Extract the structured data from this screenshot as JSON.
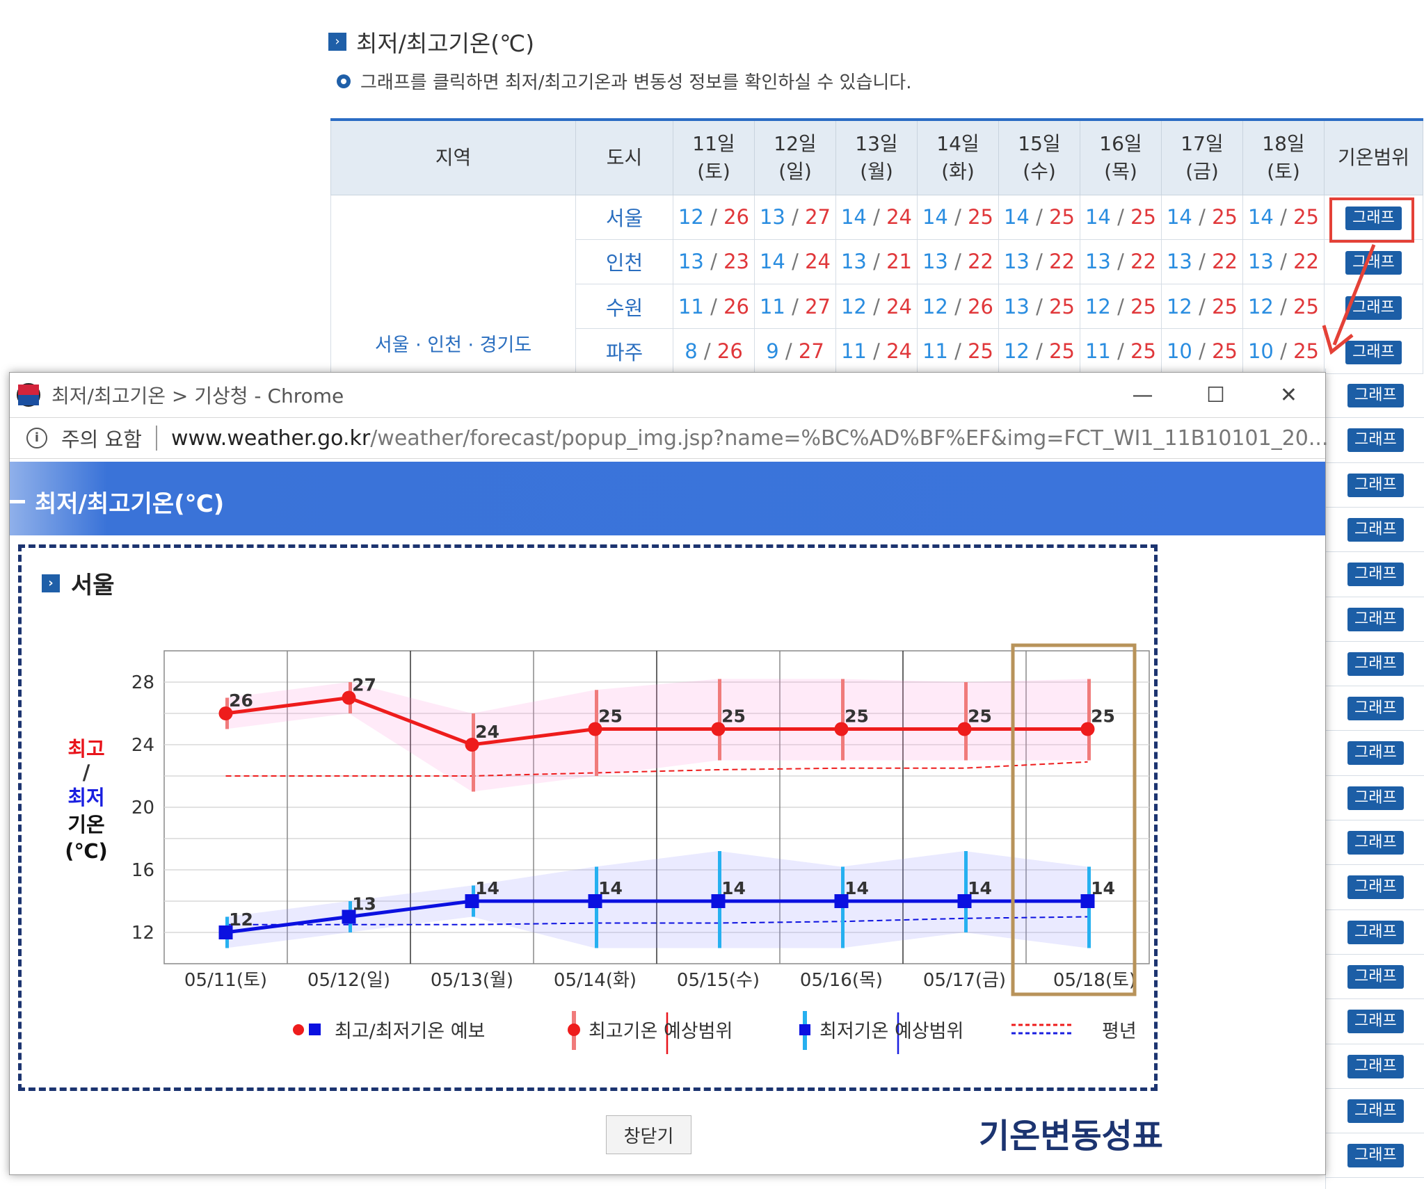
{
  "section": {
    "title": "최저/최고기온(℃)",
    "note": "그래프를 클릭하면 최저/최고기온과 변동성 정보를 확인하실 수 있습니다."
  },
  "table": {
    "headers": {
      "region": "지역",
      "city": "도시",
      "days": [
        {
          "day": "11일",
          "dow": "(토)"
        },
        {
          "day": "12일",
          "dow": "(일)"
        },
        {
          "day": "13일",
          "dow": "(월)"
        },
        {
          "day": "14일",
          "dow": "(화)"
        },
        {
          "day": "15일",
          "dow": "(수)"
        },
        {
          "day": "16일",
          "dow": "(목)"
        },
        {
          "day": "17일",
          "dow": "(금)"
        },
        {
          "day": "18일",
          "dow": "(토)"
        }
      ],
      "range": "기온범위"
    },
    "region_name": "서울 · 인천 · 경기도",
    "rows": [
      {
        "city": "서울",
        "temps": [
          [
            "12",
            "26"
          ],
          [
            "13",
            "27"
          ],
          [
            "14",
            "24"
          ],
          [
            "14",
            "25"
          ],
          [
            "14",
            "25"
          ],
          [
            "14",
            "25"
          ],
          [
            "14",
            "25"
          ],
          [
            "14",
            "25"
          ]
        ]
      },
      {
        "city": "인천",
        "temps": [
          [
            "13",
            "23"
          ],
          [
            "14",
            "24"
          ],
          [
            "13",
            "21"
          ],
          [
            "13",
            "22"
          ],
          [
            "13",
            "22"
          ],
          [
            "13",
            "22"
          ],
          [
            "13",
            "22"
          ],
          [
            "13",
            "22"
          ]
        ]
      },
      {
        "city": "수원",
        "temps": [
          [
            "11",
            "26"
          ],
          [
            "11",
            "27"
          ],
          [
            "12",
            "24"
          ],
          [
            "12",
            "26"
          ],
          [
            "13",
            "25"
          ],
          [
            "12",
            "25"
          ],
          [
            "12",
            "25"
          ],
          [
            "12",
            "25"
          ]
        ]
      },
      {
        "city": "파주",
        "temps": [
          [
            "8",
            "26"
          ],
          [
            "9",
            "27"
          ],
          [
            "11",
            "24"
          ],
          [
            "11",
            "25"
          ],
          [
            "12",
            "25"
          ],
          [
            "11",
            "25"
          ],
          [
            "10",
            "25"
          ],
          [
            "10",
            "25"
          ]
        ]
      }
    ],
    "graph_button": "그래프"
  },
  "popup": {
    "window_title": "최저/최고기온 > 기상청 - Chrome",
    "security_label": "주의 요함",
    "url_host": "www.weather.go.kr",
    "url_path": "/weather/forecast/popup_img.jsp?name=%BC%AD%BF%EF&img=FCT_WI1_11B10101_20...",
    "header_title": "최저/최고기온(℃)",
    "chart_title": "서울",
    "close_button": "창닫기",
    "annotation": "기온변동성표"
  },
  "chart_data": {
    "type": "line",
    "ylabel_parts": [
      "최고",
      "/",
      "최저",
      "기온",
      "(℃)"
    ],
    "categories": [
      "05/11(토)",
      "05/12(일)",
      "05/13(월)",
      "05/14(화)",
      "05/15(수)",
      "05/16(목)",
      "05/17(금)",
      "05/18(토)"
    ],
    "yticks": [
      12,
      16,
      20,
      24,
      28
    ],
    "ylim": [
      10,
      30
    ],
    "series": [
      {
        "name": "최고기온",
        "color": "#ee1c1c",
        "values": [
          26,
          27,
          24,
          25,
          25,
          25,
          25,
          25
        ],
        "range_low": [
          25,
          26,
          21,
          22,
          23,
          23,
          23,
          23
        ],
        "range_high": [
          27,
          28,
          26,
          27.5,
          28.2,
          28.2,
          28,
          28.2
        ],
        "normal": [
          22,
          22,
          22,
          22.2,
          22.4,
          22.5,
          22.5,
          22.9
        ]
      },
      {
        "name": "최저기온",
        "color": "#0b10e0",
        "values": [
          12,
          13,
          14,
          14,
          14,
          14,
          14,
          14
        ],
        "range_low": [
          11,
          12,
          13,
          11,
          11,
          11,
          12,
          11
        ],
        "range_high": [
          13,
          14,
          15,
          16.2,
          17.2,
          16.2,
          17.2,
          16.2
        ],
        "normal": [
          12.5,
          12.5,
          12.5,
          12.6,
          12.6,
          12.7,
          12.9,
          13
        ]
      }
    ],
    "legend": [
      "최고/최저기온 예보",
      "최고기온 예상범위",
      "최저기온 예상범위",
      "평년"
    ],
    "grid": true,
    "highlight_category": "05/18(토)"
  },
  "colors": {
    "header_blue": "#3b74dc",
    "button_blue": "#1c5ea6",
    "highlight_red": "#e44137",
    "highlight_gold": "#b8935a",
    "frame_navy": "#1c3470"
  }
}
